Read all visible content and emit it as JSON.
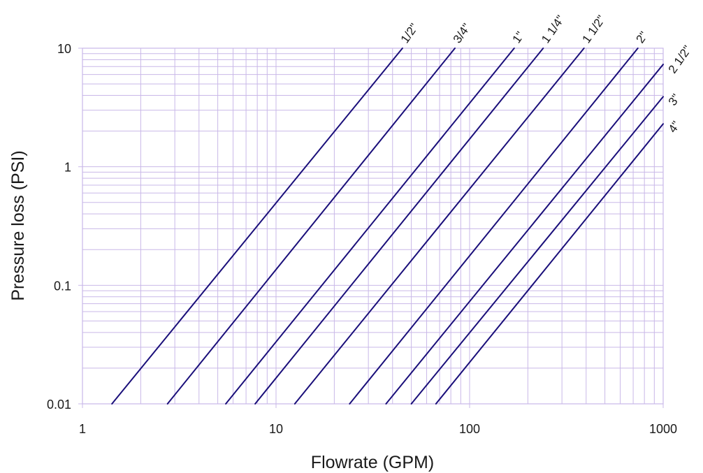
{
  "chart_data": {
    "type": "line",
    "xscale": "log",
    "yscale": "log",
    "xlim": [
      1,
      1000
    ],
    "ylim": [
      0.01,
      10
    ],
    "xlabel": "Flowrate (GPM)",
    "ylabel": "Pressure loss (PSI)",
    "x_ticks": [
      "1",
      "10",
      "100",
      "1000"
    ],
    "y_ticks": [
      "0.01",
      "0.1",
      "1",
      "10"
    ],
    "grid": true,
    "colors": {
      "line": "#1a0f7a",
      "grid": "#c9b8e8",
      "text": "#1a1a1a"
    },
    "series": [
      {
        "name": "1/2\"",
        "points": [
          [
            1.42,
            0.01
          ],
          [
            45,
            10
          ]
        ]
      },
      {
        "name": "3/4\"",
        "points": [
          [
            2.75,
            0.01
          ],
          [
            84,
            10
          ]
        ]
      },
      {
        "name": "1\"",
        "points": [
          [
            5.5,
            0.01
          ],
          [
            170,
            10
          ]
        ]
      },
      {
        "name": "1 1/4\"",
        "points": [
          [
            7.8,
            0.01
          ],
          [
            240,
            10
          ]
        ]
      },
      {
        "name": "1 1/2\"",
        "points": [
          [
            12.5,
            0.01
          ],
          [
            390,
            10
          ]
        ]
      },
      {
        "name": "2\"",
        "points": [
          [
            24,
            0.01
          ],
          [
            740,
            10
          ]
        ]
      },
      {
        "name": "2 1/2\"",
        "points": [
          [
            37,
            0.01
          ],
          [
            1000,
            7.3
          ]
        ]
      },
      {
        "name": "3\"",
        "points": [
          [
            50,
            0.01
          ],
          [
            1000,
            3.9
          ]
        ]
      },
      {
        "name": "4\"",
        "points": [
          [
            67,
            0.01
          ],
          [
            1000,
            2.3
          ]
        ]
      }
    ]
  }
}
